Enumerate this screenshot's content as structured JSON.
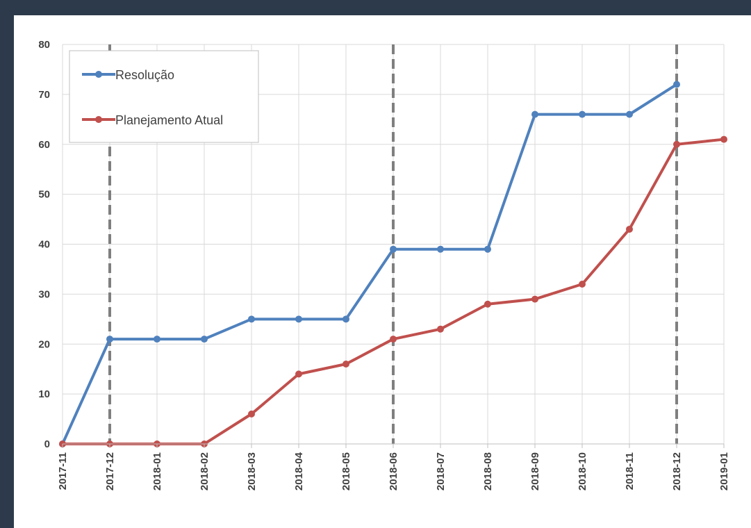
{
  "chart_data": {
    "type": "line",
    "categories": [
      "2017-11",
      "2017-12",
      "2018-01",
      "2018-02",
      "2018-03",
      "2018-04",
      "2018-05",
      "2018-06",
      "2018-07",
      "2018-08",
      "2018-09",
      "2018-10",
      "2018-11",
      "2018-12",
      "2019-01"
    ],
    "ylim": [
      0,
      80
    ],
    "yticks": [
      0,
      10,
      20,
      30,
      40,
      50,
      60,
      70,
      80
    ],
    "grid": true,
    "legend_position": "top-left",
    "series": [
      {
        "name": "Resolução",
        "color": "#4f81bd",
        "values": [
          0,
          21,
          21,
          21,
          25,
          25,
          25,
          39,
          39,
          39,
          66,
          66,
          66,
          72,
          null
        ]
      },
      {
        "name": "Planejamento Atual",
        "color": "#c0504d",
        "values": [
          0,
          0,
          0,
          0,
          6,
          14,
          16,
          21,
          23,
          28,
          29,
          32,
          43,
          60,
          61
        ]
      }
    ],
    "milestones": [
      "2017-12",
      "2018-06",
      "2018-12"
    ],
    "milestone_color": "#7f7f7f"
  }
}
